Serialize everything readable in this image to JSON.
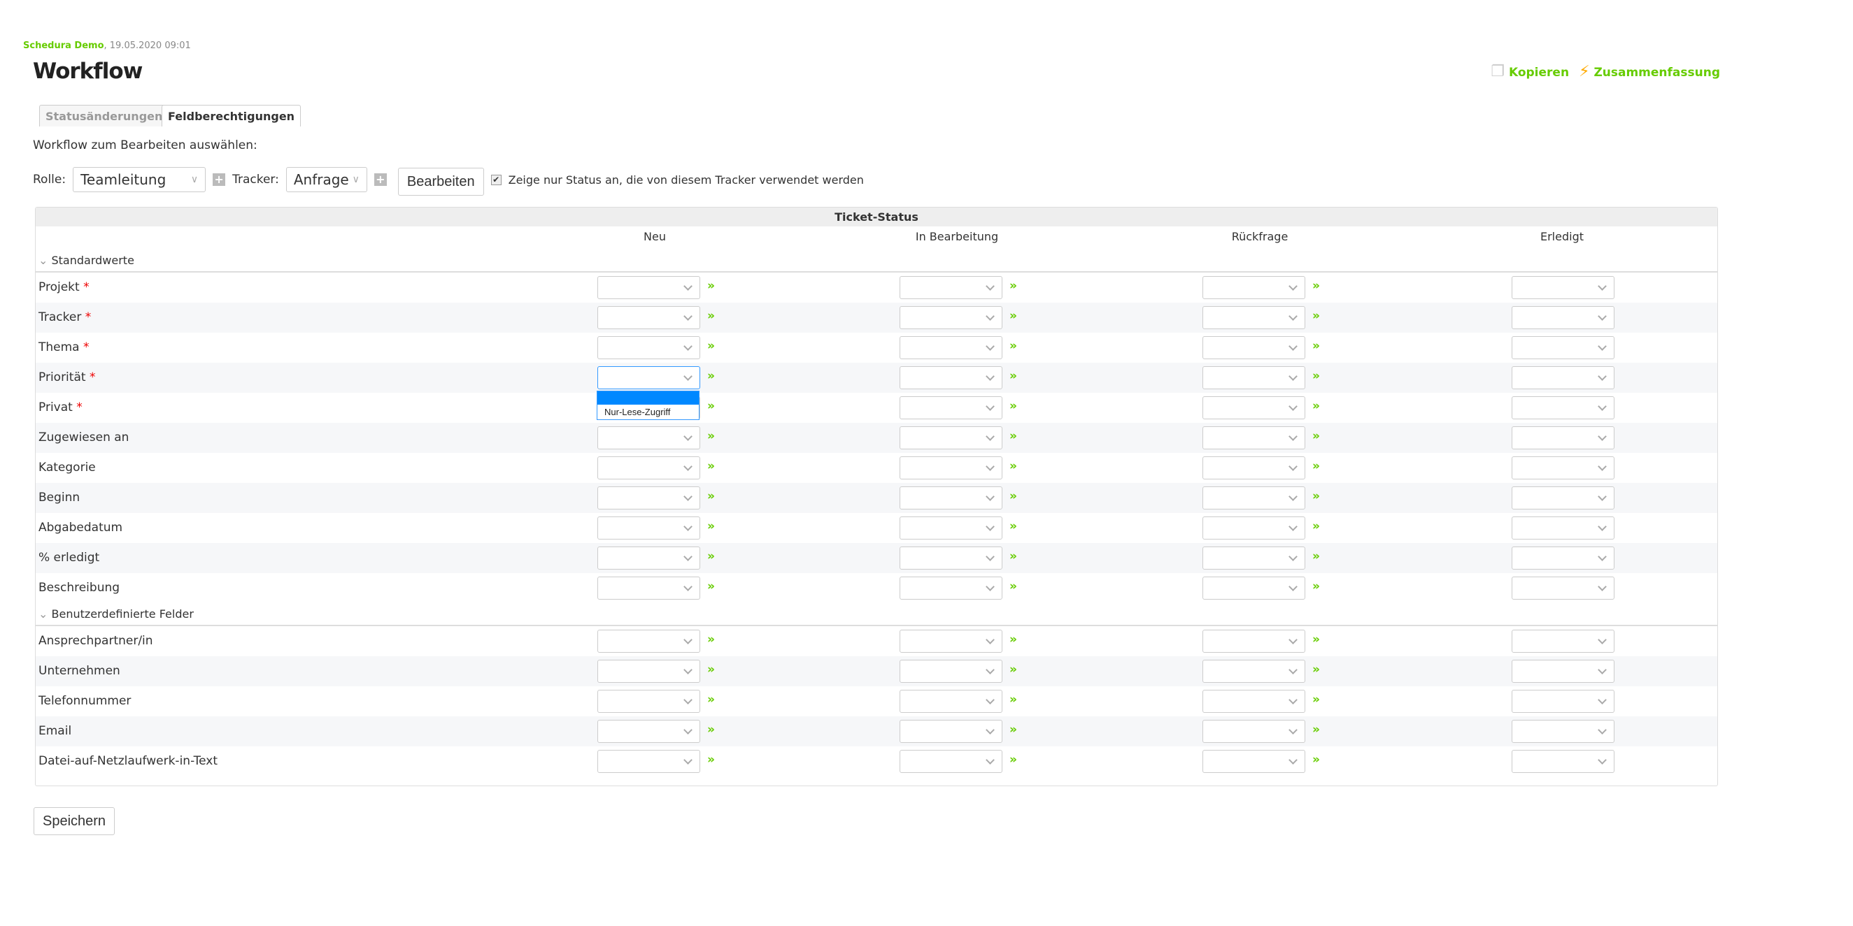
{
  "header": {
    "company": "Schedura Demo",
    "datetime": ", 19.05.2020 09:01"
  },
  "title": "Workflow",
  "actions": {
    "copy": "Kopieren",
    "summary": "Zusammenfassung"
  },
  "tabs": [
    {
      "label": "Statusänderungen",
      "active": false
    },
    {
      "label": "Feldberechtigungen",
      "active": true
    }
  ],
  "select_label": "Workflow zum Bearbeiten auswählen:",
  "controls": {
    "role_label": "Rolle:",
    "role_value": "Teamleitung",
    "tracker_label": "Tracker:",
    "tracker_value": "Anfrage",
    "edit_button": "Bearbeiten",
    "checkbox_label": "Zeige nur Status an, die von diesem Tracker verwendet werden",
    "checkbox_checked": true
  },
  "table": {
    "band": "Ticket-Status",
    "statuses": [
      "Neu",
      "In Bearbeitung",
      "Rückfrage",
      "Erledigt"
    ],
    "groups": [
      {
        "label": "Standardwerte",
        "fields": [
          {
            "name": "Projekt",
            "required": true
          },
          {
            "name": "Tracker",
            "required": true
          },
          {
            "name": "Thema",
            "required": true
          },
          {
            "name": "Priorität",
            "required": true
          },
          {
            "name": "Privat",
            "required": true
          },
          {
            "name": "Zugewiesen an"
          },
          {
            "name": "Kategorie"
          },
          {
            "name": "Beginn"
          },
          {
            "name": "Abgabedatum"
          },
          {
            "name": "% erledigt"
          },
          {
            "name": "Beschreibung"
          }
        ]
      },
      {
        "label": "Benutzerdefinierte Felder",
        "fields": [
          {
            "name": "Ansprechpartner/in"
          },
          {
            "name": "Unternehmen"
          },
          {
            "name": "Telefonnummer"
          },
          {
            "name": "Email"
          },
          {
            "name": "Datei-auf-Netzlaufwerk-in-Text"
          }
        ]
      }
    ],
    "copy_arrow": "»",
    "required_mark": "*"
  },
  "open_dropdown": {
    "field": "Priorität",
    "status": "Neu",
    "options": [
      "",
      "Nur-Lese-Zugriff"
    ],
    "highlighted": 0
  },
  "save_button": "Speichern",
  "colors": {
    "accent": "#66cc00",
    "required": "#ee0000",
    "highlight": "#0088ff"
  }
}
